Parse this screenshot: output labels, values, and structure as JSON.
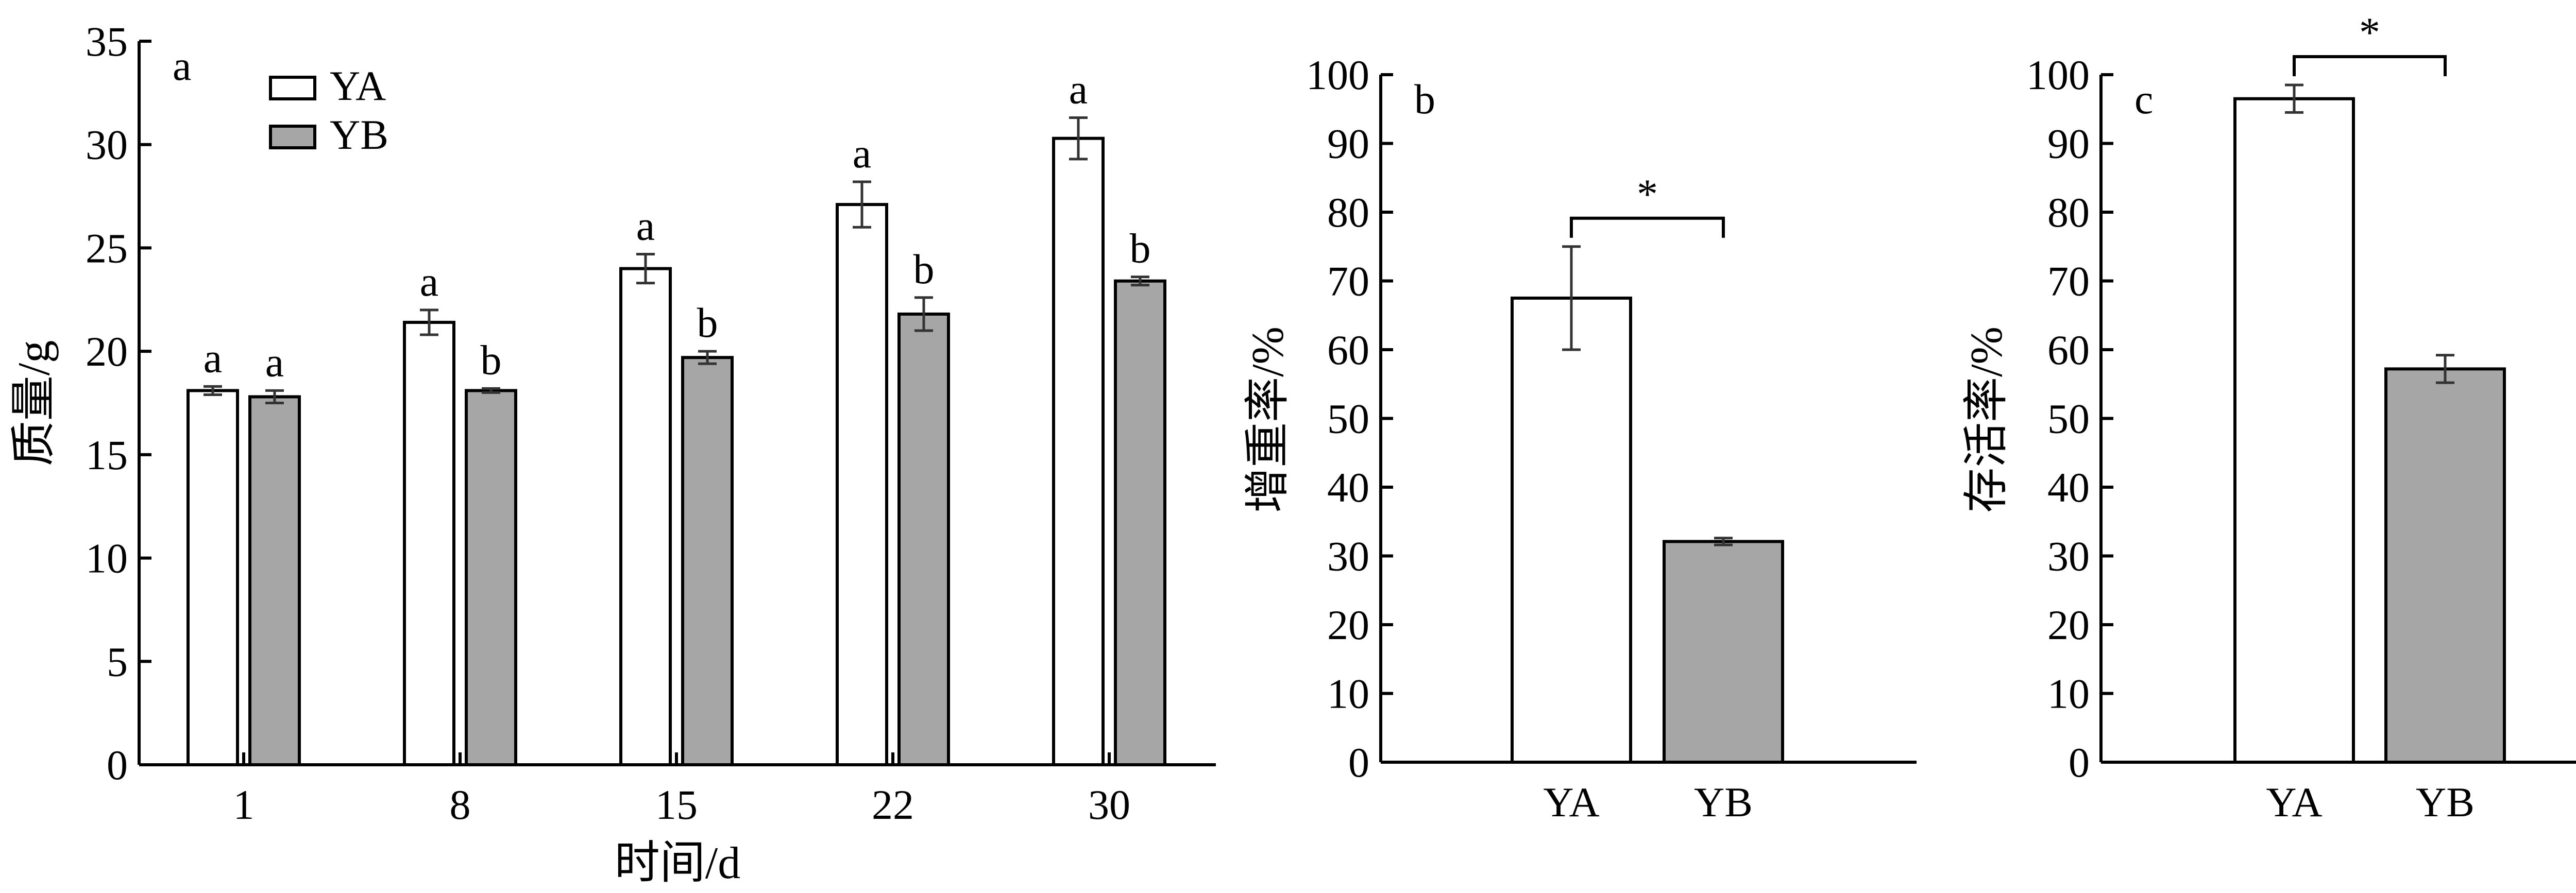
{
  "chart_data": [
    {
      "type": "bar",
      "panel_label": "a",
      "ylabel": "质量/g",
      "xlabel": "时间/d",
      "categories": [
        "1",
        "8",
        "15",
        "22",
        "30"
      ],
      "ylim": [
        0,
        35
      ],
      "yticks": [
        "0",
        "5",
        "10",
        "15",
        "20",
        "25",
        "30",
        "35"
      ],
      "legend_placement": "top-left",
      "series": [
        {
          "name": "YA",
          "color": "#ffffff",
          "values": [
            18.1,
            21.4,
            24.0,
            27.1,
            30.3
          ],
          "errors": [
            0.2,
            0.6,
            0.7,
            1.1,
            1.0
          ],
          "letters": [
            "a",
            "a",
            "a",
            "a",
            "a"
          ]
        },
        {
          "name": "YB",
          "color": "#a6a6a6",
          "values": [
            17.8,
            18.1,
            19.7,
            21.8,
            23.4
          ],
          "errors": [
            0.3,
            0.1,
            0.3,
            0.8,
            0.2
          ],
          "letters": [
            "a",
            "b",
            "b",
            "b",
            "b"
          ]
        }
      ]
    },
    {
      "type": "bar",
      "panel_label": "b",
      "ylabel": "增重率/%",
      "categories": [
        "YA",
        "YB"
      ],
      "values": [
        67.5,
        32.1
      ],
      "errors": [
        7.5,
        0.5
      ],
      "colors": [
        "#ffffff",
        "#a6a6a6"
      ],
      "ylim": [
        0,
        100
      ],
      "yticks": [
        "0",
        "10",
        "20",
        "30",
        "40",
        "50",
        "60",
        "70",
        "80",
        "90",
        "100"
      ],
      "significance": "*"
    },
    {
      "type": "bar",
      "panel_label": "c",
      "ylabel": "存活率/%",
      "categories": [
        "YA",
        "YB"
      ],
      "values": [
        96.5,
        57.2
      ],
      "errors": [
        2.0,
        2.0
      ],
      "colors": [
        "#ffffff",
        "#a6a6a6"
      ],
      "ylim": [
        0,
        100
      ],
      "yticks": [
        "0",
        "10",
        "20",
        "30",
        "40",
        "50",
        "60",
        "70",
        "80",
        "90",
        "100"
      ],
      "significance": "*"
    }
  ]
}
